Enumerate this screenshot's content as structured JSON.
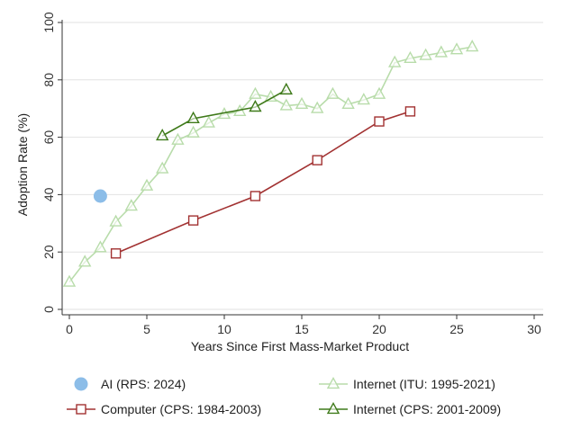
{
  "chart_data": {
    "type": "line",
    "xlabel": "Years Since First Mass-Market Product",
    "ylabel": "Adoption Rate  (%)",
    "xlim": [
      0,
      30
    ],
    "ylim": [
      0,
      100
    ],
    "xticks": [
      0,
      5,
      10,
      15,
      20,
      25,
      30
    ],
    "yticks": [
      0,
      20,
      40,
      60,
      80,
      100
    ],
    "grid": "horizontal",
    "legend_position": "bottom",
    "series": [
      {
        "name": "AI (RPS: 2024)",
        "style": "point",
        "marker": "filled-circle",
        "color": "#8cbde8",
        "points": [
          [
            2,
            39.5
          ]
        ]
      },
      {
        "name": "Internet (ITU: 1995-2021)",
        "style": "line",
        "marker": "triangle",
        "color": "#b8dcaa",
        "points": [
          [
            0,
            9.5
          ],
          [
            1,
            16.5
          ],
          [
            2,
            21.5
          ],
          [
            3,
            30.5
          ],
          [
            4,
            36
          ],
          [
            5,
            43
          ],
          [
            6,
            49
          ],
          [
            7,
            59
          ],
          [
            8,
            61.5
          ],
          [
            9,
            65
          ],
          [
            10,
            68
          ],
          [
            11,
            69
          ],
          [
            12,
            75
          ],
          [
            13,
            74
          ],
          [
            14,
            71
          ],
          [
            15,
            71.5
          ],
          [
            16,
            70
          ],
          [
            17,
            75
          ],
          [
            18,
            71.5
          ],
          [
            19,
            73
          ],
          [
            20,
            75
          ],
          [
            21,
            86
          ],
          [
            22,
            87.5
          ],
          [
            23,
            88.5
          ],
          [
            24,
            89.5
          ],
          [
            25,
            90.5
          ],
          [
            26,
            91.5
          ]
        ]
      },
      {
        "name": "Computer (CPS: 1984-2003)",
        "style": "line",
        "marker": "hollow-square",
        "color": "#a23232",
        "points": [
          [
            3,
            19.5
          ],
          [
            8,
            31
          ],
          [
            12,
            39.5
          ],
          [
            16,
            52
          ],
          [
            20,
            65.5
          ],
          [
            22,
            69
          ]
        ]
      },
      {
        "name": "Internet (CPS: 2001-2009)",
        "style": "line",
        "marker": "triangle",
        "color": "#3f7a1a",
        "points": [
          [
            6,
            60.5
          ],
          [
            8,
            66.5
          ],
          [
            12,
            70.5
          ],
          [
            14,
            76.5
          ]
        ]
      }
    ]
  }
}
